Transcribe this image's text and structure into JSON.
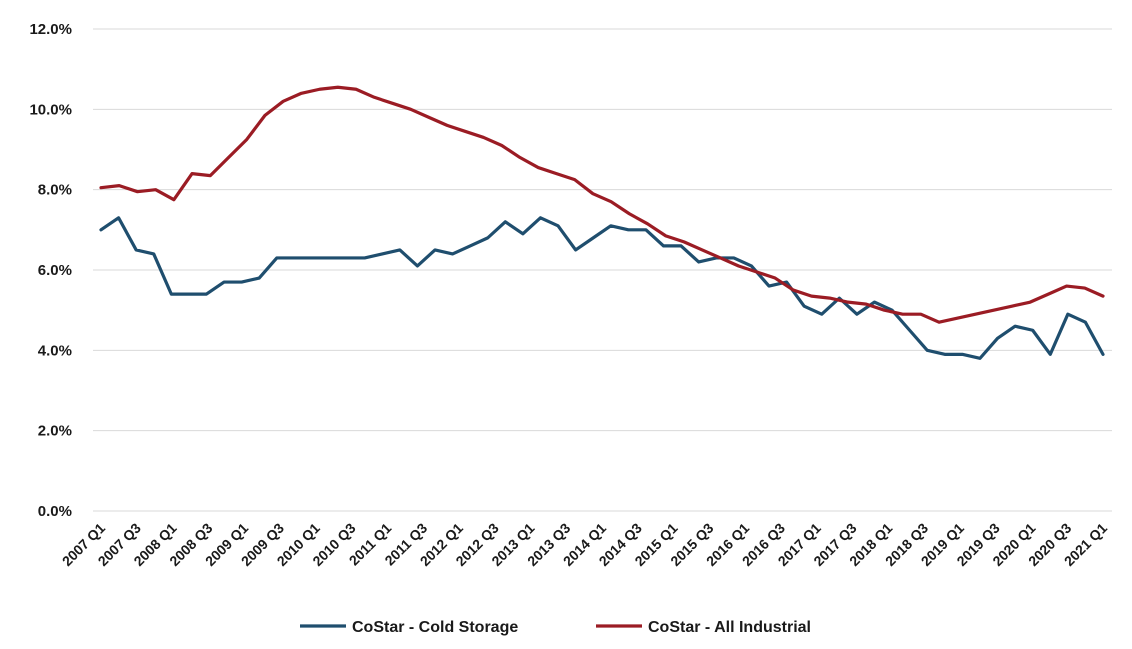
{
  "chart_data": {
    "type": "line",
    "title": "",
    "xlabel": "",
    "ylabel": "",
    "ylim": [
      0,
      12
    ],
    "y_ticks": [
      "0.0%",
      "2.0%",
      "4.0%",
      "6.0%",
      "8.0%",
      "10.0%",
      "12.0%"
    ],
    "x_tick_labels": [
      "2007 Q1",
      "2007 Q3",
      "2008 Q1",
      "2008 Q3",
      "2009 Q1",
      "2009 Q3",
      "2010 Q1",
      "2010 Q3",
      "2011 Q1",
      "2011 Q3",
      "2012 Q1",
      "2012 Q3",
      "2013 Q1",
      "2013 Q3",
      "2014 Q1",
      "2014 Q3",
      "2015 Q1",
      "2015 Q3",
      "2016 Q1",
      "2016 Q3",
      "2017 Q1",
      "2017 Q3",
      "2018 Q1",
      "2018 Q3",
      "2019 Q1",
      "2019 Q3",
      "2020 Q1",
      "2020 Q3",
      "2021 Q1"
    ],
    "grid": true,
    "legend_position": "bottom",
    "series": [
      {
        "name": "CoStar - Cold Storage",
        "color": "#1f4e6e",
        "values": [
          7.0,
          7.3,
          6.5,
          6.4,
          5.4,
          5.4,
          5.4,
          5.7,
          5.7,
          5.8,
          6.3,
          6.3,
          6.3,
          6.3,
          6.3,
          6.3,
          6.4,
          6.5,
          6.1,
          6.5,
          6.4,
          6.6,
          6.8,
          7.2,
          6.9,
          7.3,
          7.1,
          6.5,
          6.8,
          7.1,
          7.0,
          7.0,
          6.6,
          6.6,
          6.2,
          6.3,
          6.3,
          6.1,
          5.6,
          5.7,
          5.1,
          4.9,
          5.3,
          4.9,
          5.2,
          5.0,
          4.5,
          4.0,
          3.9,
          3.9,
          3.8,
          4.3,
          4.6,
          4.5,
          3.9,
          4.9,
          4.7,
          3.9
        ]
      },
      {
        "name": "CoStar - All Industrial",
        "color": "#9b1c24",
        "values": [
          8.05,
          8.1,
          7.95,
          8.0,
          7.75,
          8.4,
          8.35,
          8.8,
          9.25,
          9.85,
          10.2,
          10.4,
          10.5,
          10.55,
          10.5,
          10.3,
          10.15,
          10.0,
          9.8,
          9.6,
          9.45,
          9.3,
          9.1,
          8.8,
          8.55,
          8.4,
          8.25,
          7.9,
          7.7,
          7.4,
          7.15,
          6.85,
          6.7,
          6.5,
          6.3,
          6.1,
          5.95,
          5.8,
          5.5,
          5.35,
          5.3,
          5.2,
          5.15,
          5.0,
          4.9,
          4.9,
          4.7,
          4.8,
          4.9,
          5.0,
          5.1,
          5.2,
          5.4,
          5.6,
          5.55,
          5.35
        ]
      }
    ]
  }
}
